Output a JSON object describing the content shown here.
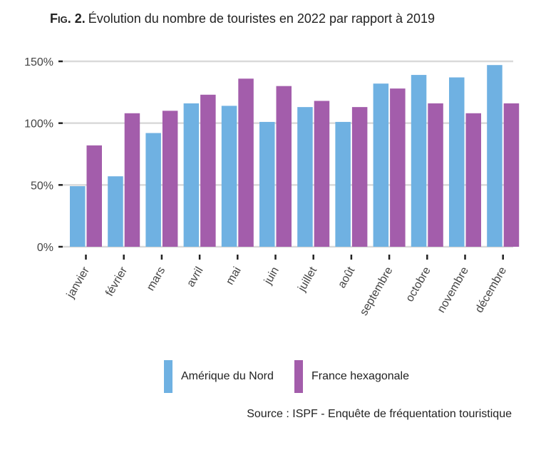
{
  "chart_data": {
    "type": "bar",
    "title_prefix": "Fig. 2.",
    "title": "Évolution du nombre de touristes en 2022 par rapport à 2019",
    "categories": [
      "janvier",
      "février",
      "mars",
      "avril",
      "mai",
      "juin",
      "juillet",
      "août",
      "septembre",
      "octobre",
      "novembre",
      "décembre"
    ],
    "series": [
      {
        "name": "Amérique du Nord",
        "color": "#6fb1e2",
        "values": [
          49,
          57,
          92,
          116,
          114,
          101,
          113,
          101,
          132,
          139,
          137,
          147
        ]
      },
      {
        "name": "France hexagonale",
        "color": "#a35dab",
        "values": [
          82,
          108,
          110,
          123,
          136,
          130,
          118,
          113,
          128,
          116,
          108,
          116
        ]
      }
    ],
    "ylim": [
      0,
      150
    ],
    "yticks": [
      0,
      50,
      100,
      150
    ],
    "ytick_labels": [
      "0%",
      "50%",
      "100%",
      "150%"
    ],
    "grid": true,
    "legend_position": "bottom",
    "source": "Source : ISPF - Enquête de fréquentation touristique"
  }
}
